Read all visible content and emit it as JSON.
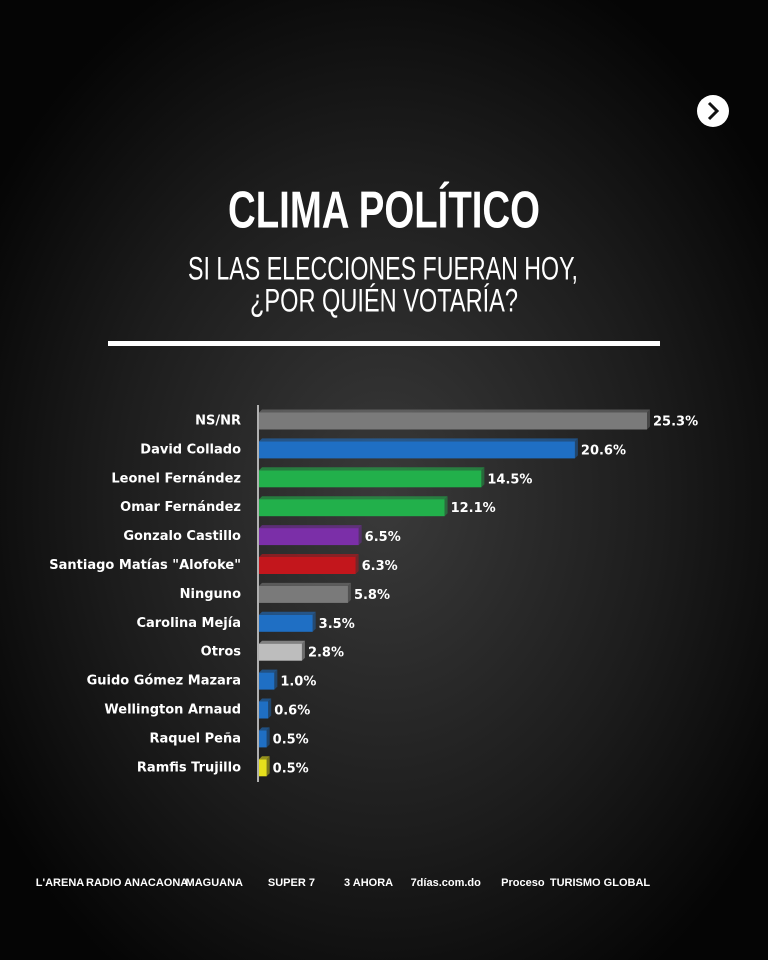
{
  "chart_data": {
    "type": "bar",
    "orientation": "horizontal",
    "title": "CLIMA POLÍTICO",
    "subtitle": [
      "SI LAS ELECCIONES FUERAN HOY,",
      "¿POR QUIÉN VOTARÍA?"
    ],
    "categories": [
      "NS/NR",
      "David Collado",
      "Leonel Fernández",
      "Omar Fernández",
      "Gonzalo Castillo",
      "Santiago Matías \"Alofoke\"",
      "Ninguno",
      "Carolina Mejía",
      "Otros",
      "Guido Gómez Mazara",
      "Wellington Arnaud",
      "Raquel Peña",
      "Ramfis Trujillo"
    ],
    "values": [
      25.3,
      20.6,
      14.5,
      12.1,
      6.5,
      6.3,
      5.8,
      3.5,
      2.8,
      1.0,
      0.6,
      0.5,
      0.5
    ],
    "value_labels": [
      "25.3%",
      "20.6%",
      "14.5%",
      "12.1%",
      "6.5%",
      "6.3%",
      "5.8%",
      "3.5%",
      "2.8%",
      "1.0%",
      "0.6%",
      "0.5%",
      "0.5%"
    ],
    "colors": [
      "#7a7a7a",
      "#1f6fc4",
      "#22b04b",
      "#22b04b",
      "#7b2fa8",
      "#c3161c",
      "#7a7a7a",
      "#1f6fc4",
      "#bdbdbd",
      "#1f6fc4",
      "#1f6fc4",
      "#1f6fc4",
      "#e6e01c"
    ]
  },
  "footer_logos": [
    "L'ARENA",
    "RADIO ANACAONA",
    "MAGUANA",
    "SUPER 7",
    "3 AHORA",
    "7días.com.do",
    "Proceso",
    "TURISMO GLOBAL"
  ]
}
